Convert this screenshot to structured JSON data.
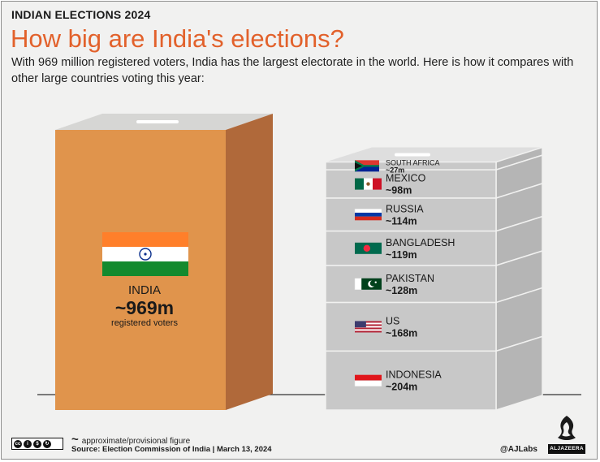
{
  "header": {
    "kicker": "INDIAN ELECTIONS 2024",
    "title": "How big are India's elections?",
    "subtitle": "With 969 million registered voters, India has the largest electorate in the world. Here is how it compares with other large countries voting this year:"
  },
  "chart_data": {
    "type": "bar",
    "categories": [
      "INDIA",
      "SOUTH AFRICA",
      "MEXICO",
      "RUSSIA",
      "BANGLADESH",
      "PAKISTAN",
      "US",
      "INDONESIA"
    ],
    "values": [
      969,
      27,
      98,
      114,
      119,
      128,
      168,
      204
    ],
    "value_labels": [
      "~969m",
      "~27m",
      "~98m",
      "~114m",
      "~119m",
      "~128m",
      "~168m",
      "~204m"
    ],
    "unit": "m",
    "india_caption": "registered voters",
    "colors": {
      "india": "#e0944c",
      "india_side": "#b0693a",
      "india_top": "#d6d6d4",
      "others": "#c8c8c8",
      "others_side": "#b5b5b5",
      "others_top": "#dedede",
      "title": "#e2612b"
    }
  },
  "footer": {
    "approx_note": "approximate/provisional figure",
    "source": "Source: Election Commission of India  |  March 13, 2024",
    "credit": "@AJLabs",
    "brand": "ALJAZEERA",
    "license_icons": [
      "cc",
      "by",
      "nc",
      "sa"
    ]
  }
}
